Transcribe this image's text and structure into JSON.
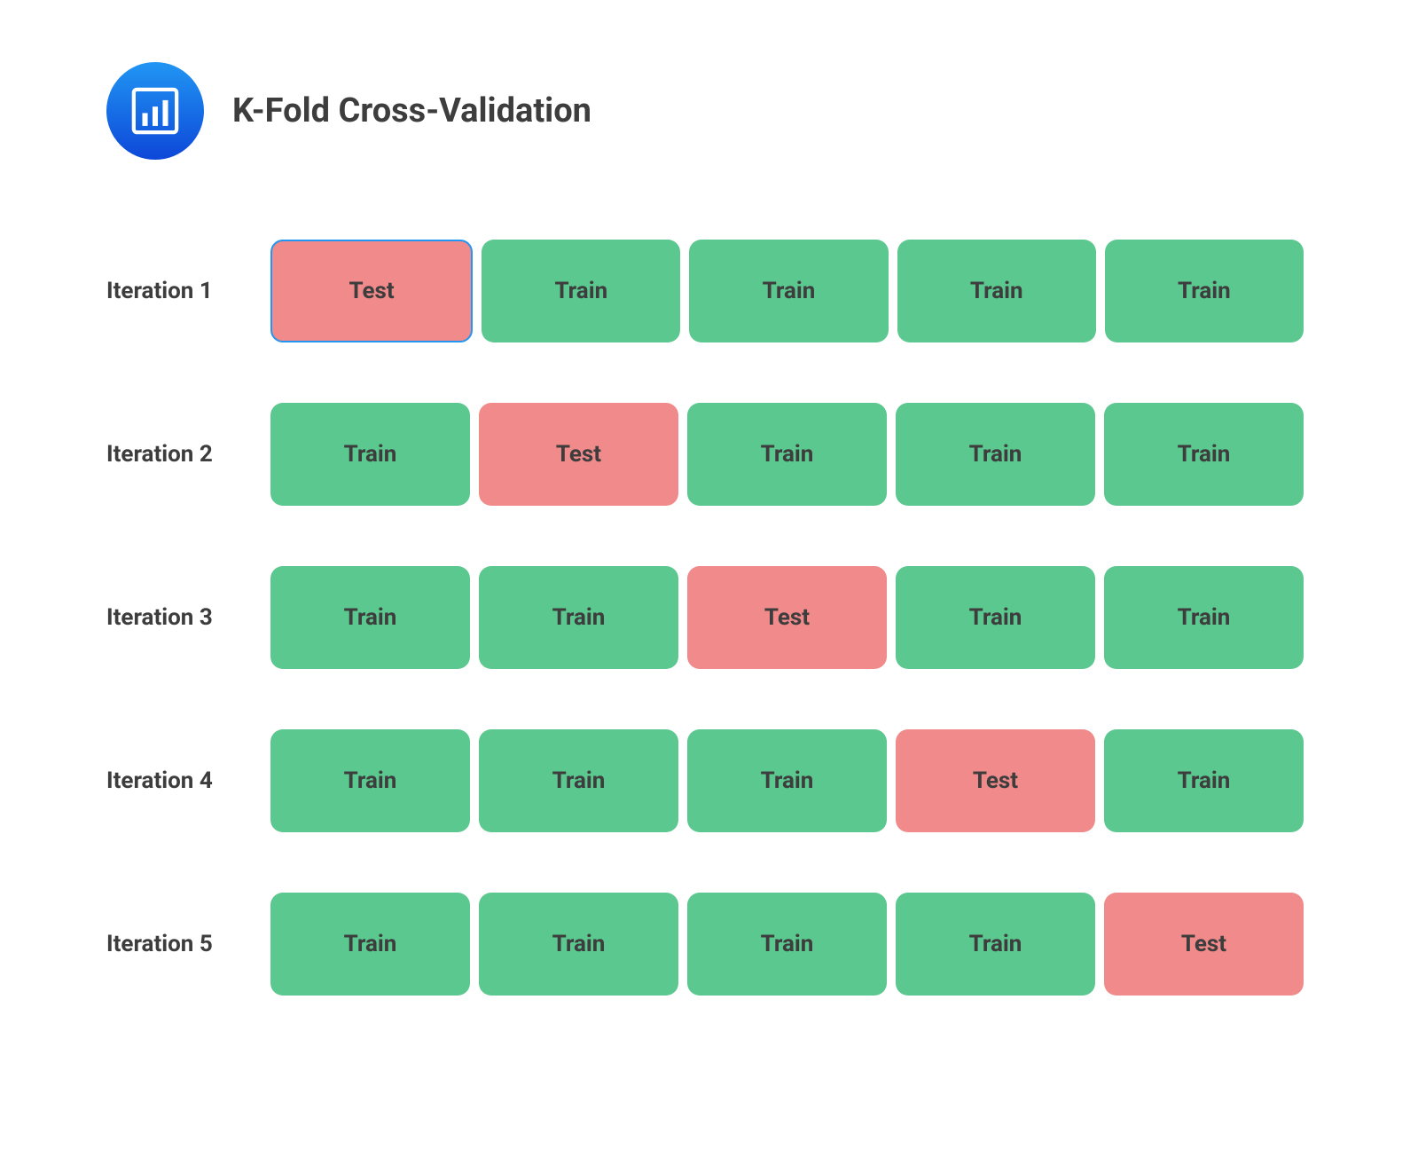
{
  "title": "K-Fold Cross-Validation",
  "logo": {
    "bg_gradient_start": "#2196f3",
    "bg_gradient_end": "#0d47d9",
    "icon_color": "#ffffff"
  },
  "colors": {
    "train_bg": "#5bc88f",
    "test_bg": "#f18a8a",
    "selected_border": "#2196f3",
    "text": "#3d3d3d",
    "background": "#ffffff"
  },
  "layout": {
    "fold_height": 116,
    "fold_border_radius": 14,
    "fold_gap": 10,
    "row_gap": 68,
    "label_width": 175,
    "title_fontsize": 38,
    "label_fontsize": 26,
    "fold_fontsize": 26
  },
  "labels": {
    "train": "Train",
    "test": "Test"
  },
  "iterations": [
    {
      "label": "Iteration 1",
      "folds": [
        "test",
        "train",
        "train",
        "train",
        "train"
      ],
      "selected_index": 0
    },
    {
      "label": "Iteration 2",
      "folds": [
        "train",
        "test",
        "train",
        "train",
        "train"
      ],
      "selected_index": null
    },
    {
      "label": "Iteration 3",
      "folds": [
        "train",
        "train",
        "test",
        "train",
        "train"
      ],
      "selected_index": null
    },
    {
      "label": "Iteration 4",
      "folds": [
        "train",
        "train",
        "train",
        "test",
        "train"
      ],
      "selected_index": null
    },
    {
      "label": "Iteration 5",
      "folds": [
        "train",
        "train",
        "train",
        "train",
        "test"
      ],
      "selected_index": null
    }
  ]
}
